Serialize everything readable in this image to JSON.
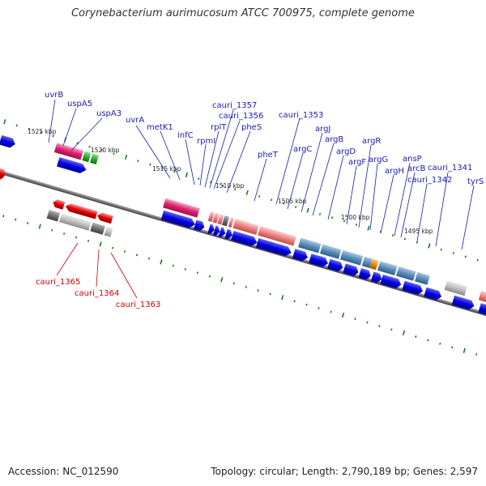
{
  "header": {
    "title": "Corynebacterium aurimucosum ATCC 700975, complete genome"
  },
  "footer": {
    "accession": "Accession: NC_012590",
    "summary": "Topology: circular; Length: 2,790,189 bp; Genes: 2,597"
  },
  "colors": {
    "forward_label": "#1a1ab4",
    "reverse_label": "#cc0000",
    "backbone": "#808080",
    "tick_marks": "#1a7a1a"
  },
  "scale_ticks": [
    {
      "label": "1525 kbp"
    },
    {
      "label": "1520 kbp"
    },
    {
      "label": "1515 kbp"
    },
    {
      "label": "1510 kbp"
    },
    {
      "label": "1505 kbp"
    },
    {
      "label": "1500 kbp"
    },
    {
      "label": "1495 kbp"
    }
  ],
  "forward_genes": [
    {
      "name": "uvrB"
    },
    {
      "name": "uspA5"
    },
    {
      "name": "uspA3"
    },
    {
      "name": "uvrA"
    },
    {
      "name": "metK1"
    },
    {
      "name": "infC"
    },
    {
      "name": "rpmI"
    },
    {
      "name": "rplT"
    },
    {
      "name": "cauri_1357"
    },
    {
      "name": "cauri_1356"
    },
    {
      "name": "pheS"
    },
    {
      "name": "pheT"
    },
    {
      "name": "cauri_1353"
    },
    {
      "name": "argC"
    },
    {
      "name": "argJ"
    },
    {
      "name": "argB"
    },
    {
      "name": "argD"
    },
    {
      "name": "argF"
    },
    {
      "name": "argR"
    },
    {
      "name": "argG"
    },
    {
      "name": "argH"
    },
    {
      "name": "ansP"
    },
    {
      "name": "arcB"
    },
    {
      "name": "cauri_1342"
    },
    {
      "name": "cauri_1341"
    },
    {
      "name": "tyrS"
    }
  ],
  "reverse_genes": [
    {
      "name": "cauri_1365"
    },
    {
      "name": "cauri_1364"
    },
    {
      "name": "cauri_1363"
    }
  ]
}
